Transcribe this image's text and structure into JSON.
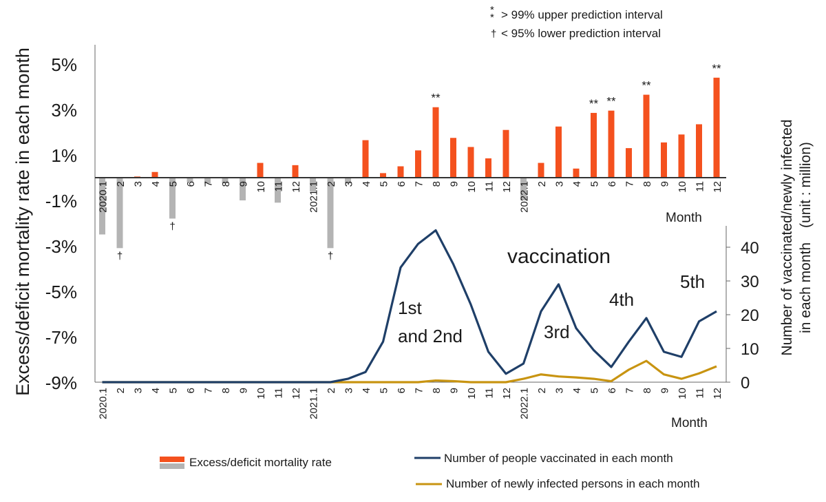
{
  "chart_data": {
    "type": "bar+line",
    "months": [
      "2020.1",
      "2",
      "3",
      "4",
      "5",
      "6",
      "7",
      "8",
      "9",
      "10",
      "11",
      "12",
      "2021.1",
      "2",
      "3",
      "4",
      "5",
      "6",
      "7",
      "8",
      "9",
      "10",
      "11",
      "12",
      "2022.1",
      "2",
      "3",
      "4",
      "5",
      "6",
      "7",
      "8",
      "9",
      "10",
      "11",
      "12"
    ],
    "excess_mortality_rate": {
      "unit": "%",
      "ylim": [
        -9,
        6
      ],
      "yticks": [
        5,
        3,
        1,
        -1,
        -3,
        -5,
        -7,
        -9
      ],
      "ytick_labels": [
        "5%",
        "3%",
        "1%",
        "-1%",
        "-3%",
        "-5%",
        "-7%",
        "-9%"
      ],
      "values": [
        -2.5,
        -3.1,
        0.05,
        0.25,
        -1.8,
        -0.2,
        -0.25,
        -0.25,
        -1.0,
        0.65,
        -1.1,
        0.55,
        -0.6,
        -3.1,
        -0.25,
        1.65,
        0.2,
        0.5,
        1.2,
        3.1,
        1.75,
        1.35,
        0.85,
        2.1,
        -1.0,
        0.65,
        2.25,
        0.4,
        2.85,
        2.95,
        1.3,
        3.65,
        1.55,
        1.9,
        2.35,
        4.4
      ],
      "markers": [
        "",
        "†",
        "",
        "",
        "†",
        "",
        "",
        "",
        "",
        "",
        "",
        "",
        "",
        "†",
        "",
        "",
        "",
        "",
        "",
        "**",
        "",
        "",
        "",
        "",
        "",
        "",
        "",
        "",
        "**",
        "**",
        "",
        "**",
        "",
        "",
        "",
        "**"
      ],
      "colors": {
        "positive": "#f4511e",
        "negative": "#b4b4b4"
      }
    },
    "vaccinated": {
      "name": "Number of people vaccinated in each month",
      "color": "#1f3f68",
      "values": [
        0,
        0,
        0,
        0,
        0,
        0,
        0,
        0,
        0,
        0,
        0,
        0,
        0,
        0,
        1,
        3,
        12,
        34,
        41,
        45,
        35,
        23,
        9,
        2.5,
        5.5,
        21,
        29,
        16,
        9.5,
        4.5,
        12,
        19,
        9,
        7.5,
        18,
        21
      ]
    },
    "infected": {
      "name": "Number of newly infected persons in each month",
      "color": "#c89411",
      "values": [
        0,
        0,
        0,
        0,
        0,
        0,
        0,
        0,
        0,
        0,
        0,
        0,
        0,
        0,
        0,
        0,
        0,
        0,
        0,
        0.5,
        0.3,
        0,
        0,
        0,
        1,
        2.3,
        1.7,
        1.4,
        1.0,
        0.3,
        3.7,
        6.3,
        2.3,
        1.0,
        2.6,
        4.7
      ]
    },
    "right_axis": {
      "ylim": [
        0,
        48
      ],
      "yticks": [
        0,
        10,
        20,
        30,
        40
      ],
      "ytick_labels": [
        "0",
        "10",
        "20",
        "30",
        "40"
      ]
    },
    "ylabel_left": "Excess/deficit mortality rate in each month",
    "ylabel_right_line1": "Number of vaccinated/newly infected",
    "ylabel_right_line2": "in each month (unit : million)",
    "xlabel": "Month",
    "legend": {
      "mortality": "Excess/deficit mortality rate",
      "vaccinated": "Number of people vaccinated in each month",
      "infected": "Number of newly infected persons in each month"
    },
    "notes": {
      "upper": "> 99% upper prediction interval",
      "lower": "< 95% lower prediction interval"
    },
    "annotations": [
      "vaccination",
      "1st",
      "and 2nd",
      "3rd",
      "4th",
      "5th"
    ]
  }
}
